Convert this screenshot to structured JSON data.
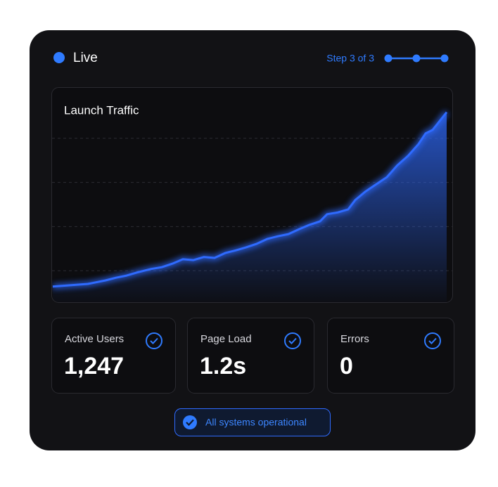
{
  "status": "Live",
  "step": "Step 3 of 3",
  "chart_data": {
    "type": "area",
    "title": "Launch Traffic",
    "x": [
      0,
      2.5,
      5,
      7.5,
      9,
      10.5,
      12,
      14,
      15.5,
      17,
      18.5,
      20,
      21.5,
      23,
      24.5,
      26,
      27.5,
      29,
      30.5,
      32,
      33.5,
      35,
      36.5,
      38,
      39,
      40.5,
      42,
      43,
      44.5,
      46,
      47.5,
      49,
      50.5,
      52,
      53,
      54,
      55,
      56
    ],
    "values": [
      0.64,
      0.67,
      0.7,
      0.78,
      0.84,
      0.89,
      0.96,
      1.04,
      1.08,
      1.16,
      1.26,
      1.24,
      1.31,
      1.29,
      1.4,
      1.46,
      1.53,
      1.61,
      1.72,
      1.78,
      1.83,
      1.94,
      2.04,
      2.12,
      2.28,
      2.32,
      2.39,
      2.6,
      2.8,
      2.96,
      3.12,
      3.39,
      3.6,
      3.87,
      4.11,
      4.19,
      4.39,
      4.59
    ],
    "color": "#2f6bff",
    "xlim": [
      0,
      56
    ],
    "ylim": [
      0,
      5
    ],
    "yticks": [
      1,
      2,
      3,
      4
    ],
    "grid": true
  },
  "stats": [
    {
      "label": "Active Users",
      "value": "1,247"
    },
    {
      "label": "Page Load",
      "value": "1.2s"
    },
    {
      "label": "Errors",
      "value": "0"
    }
  ],
  "badge": "All systems operational"
}
